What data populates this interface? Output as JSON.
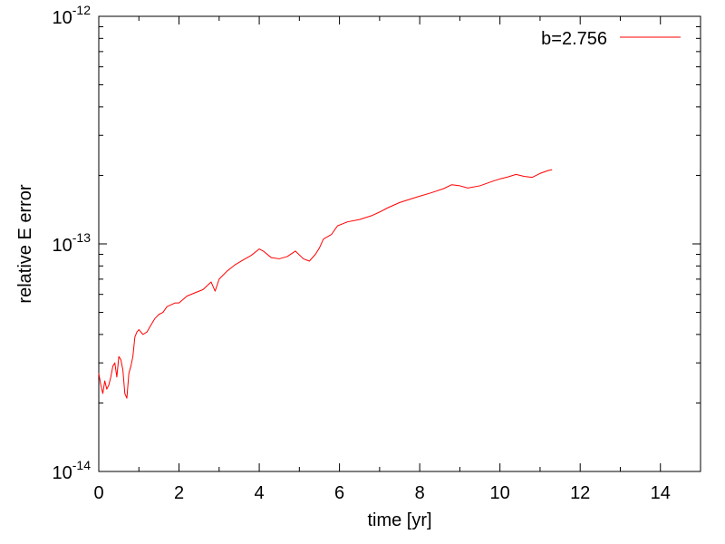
{
  "chart_data": {
    "type": "line",
    "title": "",
    "xlabel": "time [yr]",
    "ylabel": "relative E error",
    "xlim": [
      0,
      15
    ],
    "ylim": [
      1e-14,
      1e-12
    ],
    "yscale": "log",
    "grid": false,
    "legend_position": "top-right",
    "x_ticks": [
      "0",
      "2",
      "4",
      "6",
      "8",
      "10",
      "12",
      "14"
    ],
    "y_ticks": [
      {
        "base": "10",
        "exp": "-14",
        "value": 1e-14
      },
      {
        "base": "10",
        "exp": "-13",
        "value": 1e-13
      },
      {
        "base": "10",
        "exp": "-12",
        "value": 1e-12
      }
    ],
    "series": [
      {
        "name": "b=2.756",
        "color": "#ff0000",
        "x": [
          0.0,
          0.05,
          0.1,
          0.15,
          0.2,
          0.25,
          0.3,
          0.35,
          0.4,
          0.45,
          0.5,
          0.55,
          0.6,
          0.65,
          0.7,
          0.75,
          0.8,
          0.85,
          0.9,
          0.95,
          1.0,
          1.1,
          1.2,
          1.3,
          1.4,
          1.5,
          1.6,
          1.7,
          1.8,
          1.9,
          2.0,
          2.2,
          2.4,
          2.6,
          2.8,
          2.9,
          3.0,
          3.2,
          3.4,
          3.6,
          3.8,
          4.0,
          4.1,
          4.3,
          4.5,
          4.7,
          4.9,
          5.1,
          5.25,
          5.4,
          5.5,
          5.6,
          5.8,
          5.95,
          6.2,
          6.5,
          6.8,
          7.0,
          7.2,
          7.5,
          7.8,
          8.0,
          8.3,
          8.6,
          8.8,
          9.0,
          9.2,
          9.5,
          9.8,
          10.0,
          10.2,
          10.4,
          10.6,
          10.8,
          11.0,
          11.2,
          11.3
        ],
        "y": [
          2.7e-14,
          2.4e-14,
          2.2e-14,
          2.5e-14,
          2.3e-14,
          2.4e-14,
          2.6e-14,
          2.9e-14,
          3e-14,
          2.6e-14,
          3.2e-14,
          3.1e-14,
          2.8e-14,
          2.2e-14,
          2.1e-14,
          2.7e-14,
          2.9e-14,
          3.2e-14,
          3.9e-14,
          4.1e-14,
          4.2e-14,
          4e-14,
          4.1e-14,
          4.4e-14,
          4.7e-14,
          4.9e-14,
          5e-14,
          5.3e-14,
          5.4e-14,
          5.5e-14,
          5.5e-14,
          5.9e-14,
          6.1e-14,
          6.3e-14,
          6.8e-14,
          6.2e-14,
          7e-14,
          7.6e-14,
          8.1e-14,
          8.5e-14,
          8.9e-14,
          9.5e-14,
          9.3e-14,
          8.7e-14,
          8.6e-14,
          8.8e-14,
          9.3e-14,
          8.6e-14,
          8.4e-14,
          9e-14,
          9.6e-14,
          1.05e-13,
          1.1e-13,
          1.2e-13,
          1.25e-13,
          1.28e-13,
          1.33e-13,
          1.38e-13,
          1.44e-13,
          1.52e-13,
          1.58e-13,
          1.62e-13,
          1.68e-13,
          1.75e-13,
          1.82e-13,
          1.8e-13,
          1.76e-13,
          1.8e-13,
          1.88e-13,
          1.93e-13,
          1.97e-13,
          2.02e-13,
          1.98e-13,
          1.96e-13,
          2.04e-13,
          2.1e-13,
          2.12e-13
        ]
      }
    ]
  }
}
